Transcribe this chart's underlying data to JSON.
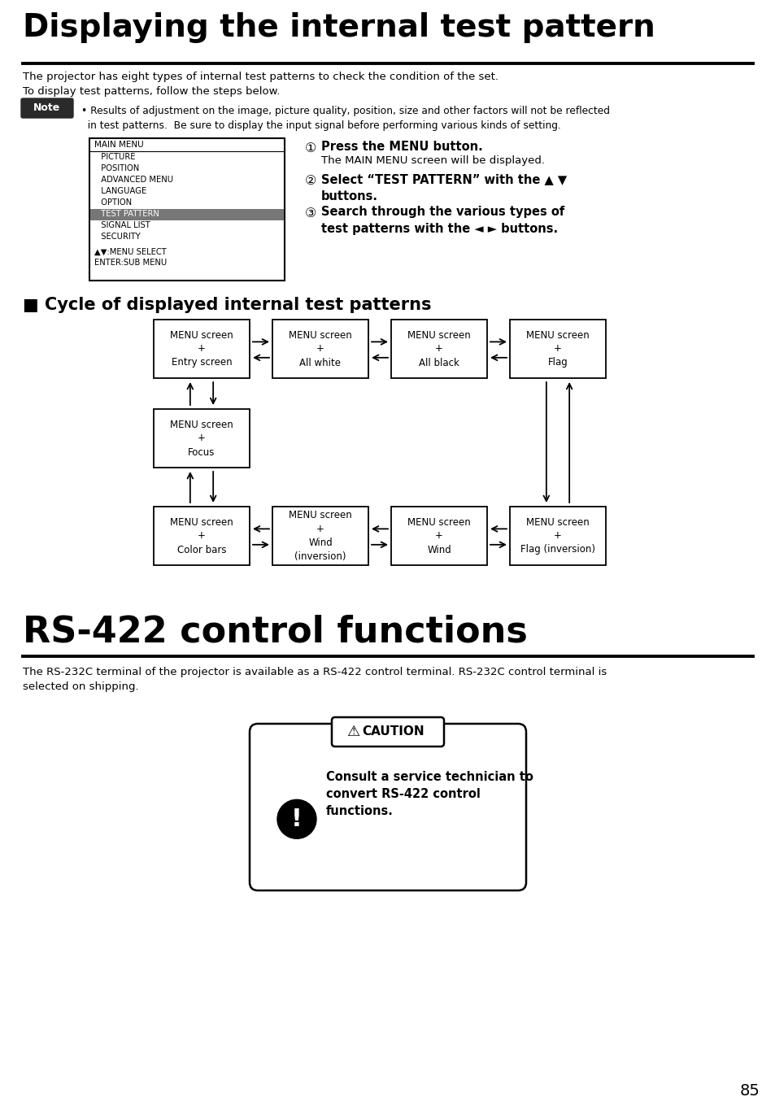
{
  "title1": "Displaying the internal test pattern",
  "subtitle1": "The projector has eight types of internal test patterns to check the condition of the set.\nTo display test patterns, follow the steps below.",
  "note_label": "Note",
  "note_text": "• Results of adjustment on the image, picture quality, position, size and other factors will not be reflected\n  in test patterns.  Be sure to display the input signal before performing various kinds of setting.",
  "menu_title": "MAIN MENU",
  "menu_items": [
    "  PICTURE",
    "  POSITION",
    "  ADVANCED MENU",
    "  LANGUAGE",
    "  OPTION",
    "  TEST PATTERN",
    "  SIGNAL LIST",
    "  SECURITY"
  ],
  "menu_selected": 5,
  "menu_footer": "▲▼:MENU SELECT\nENTER:SUB MENU",
  "step1_bold": "Press the MENU button.",
  "step1_normal": "The MAIN MENU screen will be displayed.",
  "step2_bold": "Select “TEST PATTERN” with the ▲ ▼\nbuttons.",
  "step3_bold": "Search through the various types of\ntest patterns with the ◄ ► buttons.",
  "cycle_title": "■ Cycle of displayed internal test patterns",
  "boxes_row1": [
    "MENU screen\n+\nEntry screen",
    "MENU screen\n+\nAll white",
    "MENU screen\n+\nAll black",
    "MENU screen\n+\nFlag"
  ],
  "box_focus": "MENU screen\n+\nFocus",
  "boxes_row3": [
    "MENU screen\n+\nColor bars",
    "MENU screen\n+\nWind\n(inversion)",
    "MENU screen\n+\nWind",
    "MENU screen\n+\nFlag (inversion)"
  ],
  "title2": "RS-422 control functions",
  "subtitle2": "The RS-232C terminal of the projector is available as a RS-422 control terminal. RS-232C control terminal is\nselected on shipping.",
  "caution_label": "CAUTION",
  "caution_body": "Consult a service technician to\nconvert RS-422 control\nfunctions.",
  "page_number": "85",
  "bg_color": "#ffffff",
  "text_color": "#000000",
  "note_bg": "#2a2a2a",
  "menu_highlight": "#aaaaaa"
}
